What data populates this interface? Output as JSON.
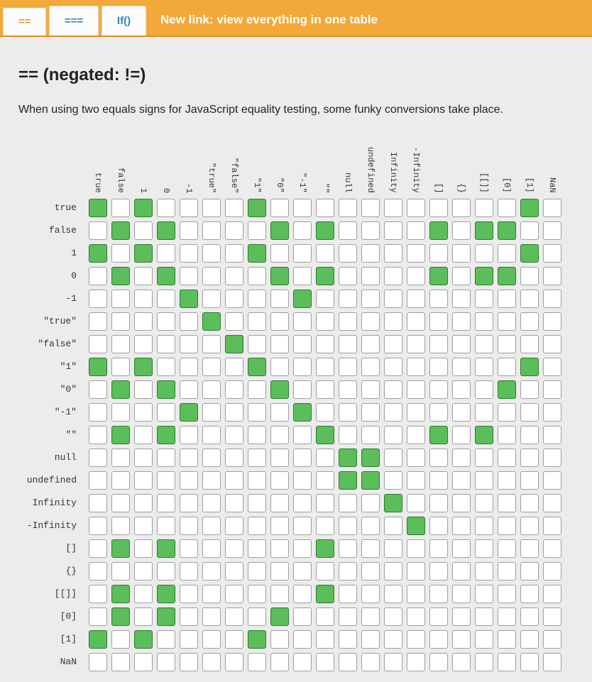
{
  "tabs": [
    {
      "label": "==",
      "active": true
    },
    {
      "label": "===",
      "active": false
    },
    {
      "label": "If()",
      "active": false
    }
  ],
  "new_link": "New link: view everything in one table",
  "heading": "== (negated: !=)",
  "description": "When using two equals signs for JavaScript equality testing, some funky conversions take place.",
  "colors": {
    "topbar": "#f3a93a",
    "match": "#5cbd5b",
    "empty": "#ffffff"
  },
  "table": {
    "columns": [
      "true",
      "false",
      "1",
      "0",
      "-1",
      "\"true\"",
      "\"false\"",
      "\"1\"",
      "\"0\"",
      "\"-1\"",
      "\"\"",
      "null",
      "undefined",
      "Infinity",
      "-Infinity",
      "[]",
      "{}",
      "[[]]",
      "[0]",
      "[1]",
      "NaN"
    ],
    "rows": [
      "true",
      "false",
      "1",
      "0",
      "-1",
      "\"true\"",
      "\"false\"",
      "\"1\"",
      "\"0\"",
      "\"-1\"",
      "\"\"",
      "null",
      "undefined",
      "Infinity",
      "-Infinity",
      "[]",
      "{}",
      "[[]]",
      "[0]",
      "[1]",
      "NaN"
    ],
    "matches": [
      [
        1,
        0,
        1,
        0,
        0,
        0,
        0,
        1,
        0,
        0,
        0,
        0,
        0,
        0,
        0,
        0,
        0,
        0,
        0,
        1,
        0
      ],
      [
        0,
        1,
        0,
        1,
        0,
        0,
        0,
        0,
        1,
        0,
        1,
        0,
        0,
        0,
        0,
        1,
        0,
        1,
        1,
        0,
        0
      ],
      [
        1,
        0,
        1,
        0,
        0,
        0,
        0,
        1,
        0,
        0,
        0,
        0,
        0,
        0,
        0,
        0,
        0,
        0,
        0,
        1,
        0
      ],
      [
        0,
        1,
        0,
        1,
        0,
        0,
        0,
        0,
        1,
        0,
        1,
        0,
        0,
        0,
        0,
        1,
        0,
        1,
        1,
        0,
        0
      ],
      [
        0,
        0,
        0,
        0,
        1,
        0,
        0,
        0,
        0,
        1,
        0,
        0,
        0,
        0,
        0,
        0,
        0,
        0,
        0,
        0,
        0
      ],
      [
        0,
        0,
        0,
        0,
        0,
        1,
        0,
        0,
        0,
        0,
        0,
        0,
        0,
        0,
        0,
        0,
        0,
        0,
        0,
        0,
        0
      ],
      [
        0,
        0,
        0,
        0,
        0,
        0,
        1,
        0,
        0,
        0,
        0,
        0,
        0,
        0,
        0,
        0,
        0,
        0,
        0,
        0,
        0
      ],
      [
        1,
        0,
        1,
        0,
        0,
        0,
        0,
        1,
        0,
        0,
        0,
        0,
        0,
        0,
        0,
        0,
        0,
        0,
        0,
        1,
        0
      ],
      [
        0,
        1,
        0,
        1,
        0,
        0,
        0,
        0,
        1,
        0,
        0,
        0,
        0,
        0,
        0,
        0,
        0,
        0,
        1,
        0,
        0
      ],
      [
        0,
        0,
        0,
        0,
        1,
        0,
        0,
        0,
        0,
        1,
        0,
        0,
        0,
        0,
        0,
        0,
        0,
        0,
        0,
        0,
        0
      ],
      [
        0,
        1,
        0,
        1,
        0,
        0,
        0,
        0,
        0,
        0,
        1,
        0,
        0,
        0,
        0,
        1,
        0,
        1,
        0,
        0,
        0
      ],
      [
        0,
        0,
        0,
        0,
        0,
        0,
        0,
        0,
        0,
        0,
        0,
        1,
        1,
        0,
        0,
        0,
        0,
        0,
        0,
        0,
        0
      ],
      [
        0,
        0,
        0,
        0,
        0,
        0,
        0,
        0,
        0,
        0,
        0,
        1,
        1,
        0,
        0,
        0,
        0,
        0,
        0,
        0,
        0
      ],
      [
        0,
        0,
        0,
        0,
        0,
        0,
        0,
        0,
        0,
        0,
        0,
        0,
        0,
        1,
        0,
        0,
        0,
        0,
        0,
        0,
        0
      ],
      [
        0,
        0,
        0,
        0,
        0,
        0,
        0,
        0,
        0,
        0,
        0,
        0,
        0,
        0,
        1,
        0,
        0,
        0,
        0,
        0,
        0
      ],
      [
        0,
        1,
        0,
        1,
        0,
        0,
        0,
        0,
        0,
        0,
        1,
        0,
        0,
        0,
        0,
        0,
        0,
        0,
        0,
        0,
        0
      ],
      [
        0,
        0,
        0,
        0,
        0,
        0,
        0,
        0,
        0,
        0,
        0,
        0,
        0,
        0,
        0,
        0,
        0,
        0,
        0,
        0,
        0
      ],
      [
        0,
        1,
        0,
        1,
        0,
        0,
        0,
        0,
        0,
        0,
        1,
        0,
        0,
        0,
        0,
        0,
        0,
        0,
        0,
        0,
        0
      ],
      [
        0,
        1,
        0,
        1,
        0,
        0,
        0,
        0,
        1,
        0,
        0,
        0,
        0,
        0,
        0,
        0,
        0,
        0,
        0,
        0,
        0
      ],
      [
        1,
        0,
        1,
        0,
        0,
        0,
        0,
        1,
        0,
        0,
        0,
        0,
        0,
        0,
        0,
        0,
        0,
        0,
        0,
        0,
        0
      ],
      [
        0,
        0,
        0,
        0,
        0,
        0,
        0,
        0,
        0,
        0,
        0,
        0,
        0,
        0,
        0,
        0,
        0,
        0,
        0,
        0,
        0
      ]
    ]
  }
}
